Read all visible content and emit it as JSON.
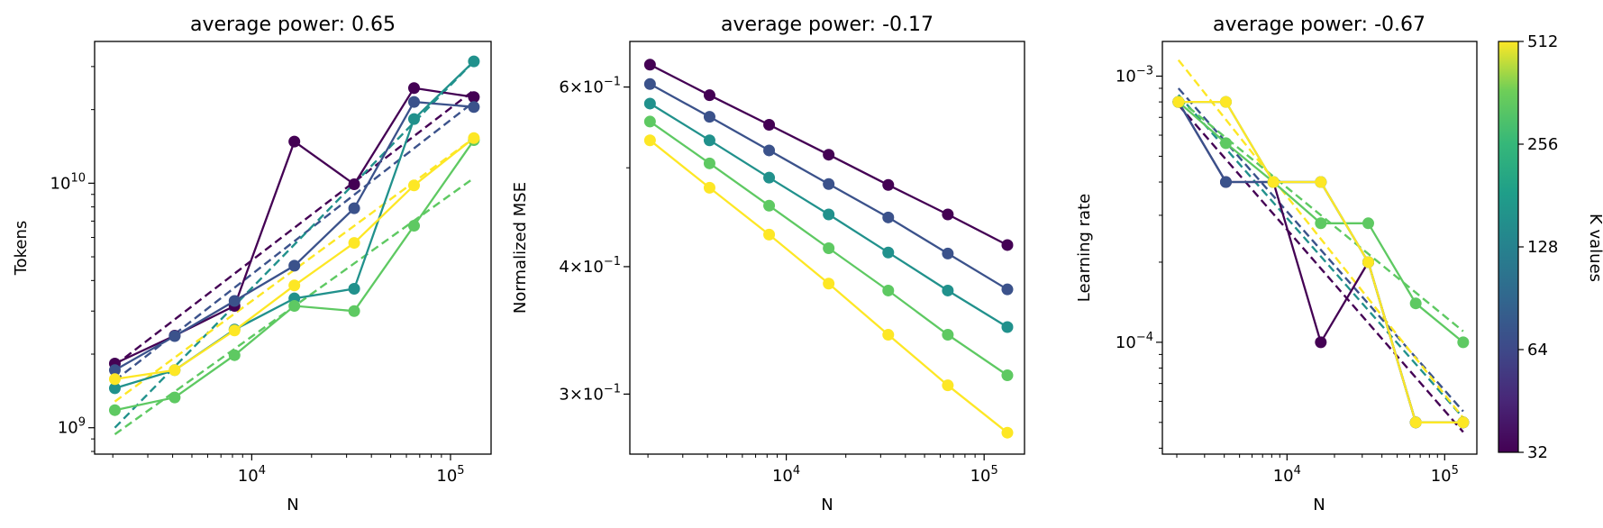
{
  "colorbar": {
    "label": "K values",
    "ticks": [
      "32",
      "64",
      "128",
      "256",
      "512"
    ],
    "colormap": "viridis"
  },
  "series_colors": {
    "K32": "#440154",
    "K64": "#3b528b",
    "K128": "#21918c",
    "K256": "#5ec962",
    "K512": "#fde725"
  },
  "chart_data": [
    {
      "type": "line",
      "title": "average power: 0.65",
      "xlabel": "N",
      "ylabel": "Tokens",
      "xscale": "log",
      "yscale": "log",
      "xlim": [
        1620,
        160000
      ],
      "ylim": [
        780000000,
        38000000000
      ],
      "xticks": [
        {
          "v": 10000,
          "m": "10",
          "e": "4"
        },
        {
          "v": 100000,
          "m": "10",
          "e": "5"
        }
      ],
      "yticks": [
        {
          "v": 1000000000,
          "m": "10",
          "e": "9"
        },
        {
          "v": 10000000000,
          "m": "10",
          "e": "10"
        }
      ],
      "grid": false,
      "x": [
        2048,
        4096,
        8192,
        16384,
        32768,
        65536,
        131072
      ],
      "series": [
        {
          "k": 32,
          "values": [
            1830000000,
            2380000000,
            3150000000,
            14800000000,
            9900000000,
            24500000000,
            22500000000
          ],
          "fit": [
            [
              2048,
              1800000000
            ],
            [
              131072,
              24000000000
            ]
          ]
        },
        {
          "k": 64,
          "values": [
            1720000000,
            2370000000,
            3300000000,
            4600000000,
            7900000000,
            21500000000,
            20500000000
          ],
          "fit": [
            [
              2048,
              1560000000
            ],
            [
              131072,
              21500000000
            ]
          ]
        },
        {
          "k": 128,
          "values": [
            1450000000,
            1720000000,
            2520000000,
            3380000000,
            3700000000,
            18300000000,
            31500000000
          ],
          "fit": [
            [
              2048,
              1000000000
            ],
            [
              131072,
              31500000000
            ]
          ]
        },
        {
          "k": 256,
          "values": [
            1180000000,
            1330000000,
            1980000000,
            3150000000,
            3000000000,
            6700000000,
            15000000000
          ],
          "fit": [
            [
              2048,
              940000000
            ],
            [
              131072,
              10500000000
            ]
          ]
        },
        {
          "k": 512,
          "values": [
            1580000000,
            1720000000,
            2500000000,
            3820000000,
            5700000000,
            9800000000,
            15300000000
          ],
          "fit": [
            [
              2048,
              1280000000
            ],
            [
              131072,
              15300000000
            ]
          ]
        }
      ]
    },
    {
      "type": "line",
      "title": "average power: -0.17",
      "xlabel": "N",
      "ylabel": "Normalized MSE",
      "xscale": "log",
      "yscale": "log",
      "xlim": [
        1620,
        160000
      ],
      "ylim": [
        0.262,
        0.665
      ],
      "xticks": [
        {
          "v": 10000,
          "m": "10",
          "e": "4"
        },
        {
          "v": 100000,
          "m": "10",
          "e": "5"
        }
      ],
      "yticks": [
        {
          "v": 0.3,
          "m": "3×10",
          "e": "−1"
        },
        {
          "v": 0.4,
          "m": "4×10",
          "e": "−1"
        },
        {
          "v": 0.6,
          "m": "6×10",
          "e": "−1"
        }
      ],
      "grid": false,
      "x": [
        2048,
        4096,
        8192,
        16384,
        32768,
        65536,
        131072
      ],
      "series": [
        {
          "k": 32,
          "values": [
            0.631,
            0.589,
            0.551,
            0.515,
            0.481,
            0.45,
            0.42
          ]
        },
        {
          "k": 64,
          "values": [
            0.604,
            0.561,
            0.52,
            0.482,
            0.447,
            0.412,
            0.38
          ]
        },
        {
          "k": 128,
          "values": [
            0.578,
            0.532,
            0.489,
            0.45,
            0.413,
            0.379,
            0.349
          ]
        },
        {
          "k": 256,
          "values": [
            0.555,
            0.505,
            0.459,
            0.417,
            0.379,
            0.343,
            0.313
          ]
        },
        {
          "k": 512,
          "values": [
            0.532,
            0.478,
            0.43,
            0.385,
            0.343,
            0.306,
            0.275
          ]
        }
      ]
    },
    {
      "type": "line",
      "title": "average power: -0.67",
      "xlabel": "N",
      "ylabel": "Learning rate",
      "xscale": "log",
      "yscale": "log",
      "xlim": [
        1620,
        160000
      ],
      "ylim": [
        3.8e-05,
        0.00135
      ],
      "xticks": [
        {
          "v": 10000,
          "m": "10",
          "e": "4"
        },
        {
          "v": 100000,
          "m": "10",
          "e": "5"
        }
      ],
      "yticks": [
        {
          "v": 0.0001,
          "m": "10",
          "e": "−4"
        },
        {
          "v": 0.001,
          "m": "10",
          "e": "−3"
        }
      ],
      "grid": false,
      "x": [
        2048,
        4096,
        8192,
        16384,
        32768,
        65536,
        131072
      ],
      "series": [
        {
          "k": 32,
          "values": [
            0.0008,
            0.0004,
            0.0004,
            0.0001,
            0.0002,
            5e-05,
            5e-05
          ],
          "fit": [
            [
              2048,
              0.00078
            ],
            [
              131072,
              4.6e-05
            ]
          ]
        },
        {
          "k": 64,
          "values": [
            0.0008,
            0.0004,
            0.0004,
            0.0004,
            0.0002,
            5e-05,
            5e-05
          ],
          "fit": [
            [
              2048,
              0.0009
            ],
            [
              131072,
              5.5e-05
            ]
          ]
        },
        {
          "k": 128,
          "values": [
            0.0008,
            0.0008,
            0.0004,
            0.0004,
            0.0002,
            5e-05,
            5e-05
          ],
          "fit": [
            [
              2048,
              0.00085
            ],
            [
              131072,
              5.2e-05
            ]
          ]
        },
        {
          "k": 256,
          "values": [
            0.0008,
            0.00056,
            0.0004,
            0.00028,
            0.00028,
            0.00014,
            0.0001
          ],
          "fit": [
            [
              2048,
              0.00082
            ],
            [
              131072,
              0.00011
            ]
          ]
        },
        {
          "k": 512,
          "values": [
            0.0008,
            0.0008,
            0.0004,
            0.0004,
            0.0002,
            5e-05,
            5e-05
          ],
          "fit": [
            [
              2048,
              0.00115
            ],
            [
              131072,
              5.2e-05
            ]
          ]
        }
      ]
    }
  ]
}
